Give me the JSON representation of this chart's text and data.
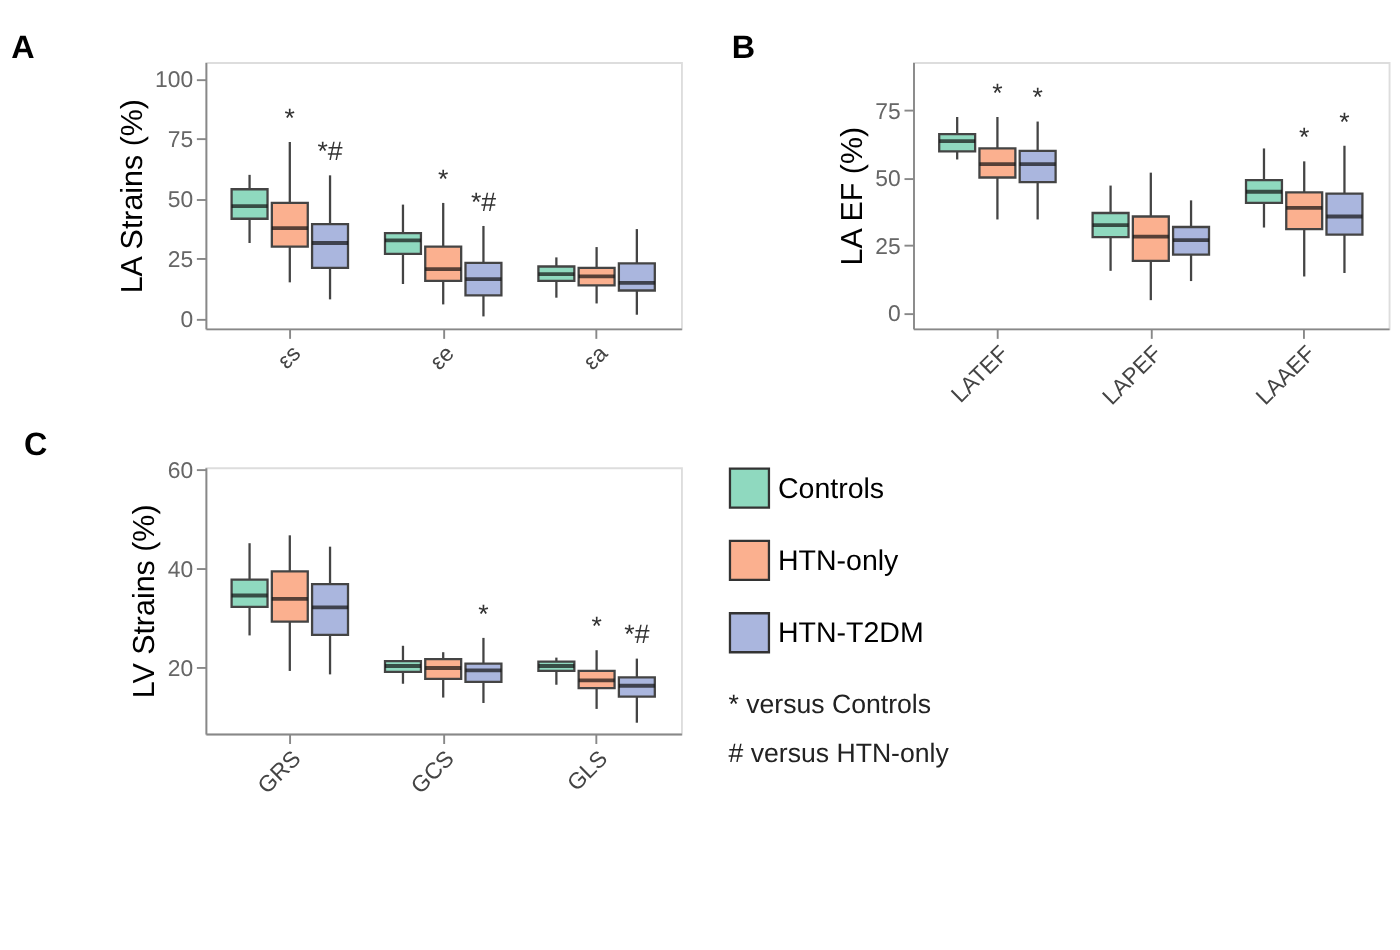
{
  "chart_data": [
    {
      "type": "box",
      "title": "A",
      "ylabel": "LA Strains (%)",
      "categories": [
        "εs",
        "εe",
        "εa"
      ],
      "ylim": [
        -4,
        107
      ],
      "yticks": [
        0,
        25,
        50,
        75,
        100
      ],
      "grid": false,
      "legend": false,
      "series": [
        {
          "color": "#8fd9bf",
          "boxes": [
            {
              "low": 31.6,
              "q1": 41.7,
              "median": 47,
              "q3": 54,
              "high": 60
            },
            {
              "low": 14.5,
              "q1": 27.1,
              "median": 32.7,
              "q3": 35.7,
              "high": 47.6
            },
            {
              "low": 8.8,
              "q1": 15.8,
              "median": 18.6,
              "q3": 21.8,
              "high": 25.6
            }
          ]
        },
        {
          "color": "#fbb08f",
          "boxes": [
            {
              "low": 15.2,
              "q1": 30.1,
              "median": 37.8,
              "q3": 48.3,
              "high": 73.7
            },
            {
              "low": 6,
              "q1": 15.8,
              "median": 20.7,
              "q3": 30.1,
              "high": 48.3
            },
            {
              "low": 6.4,
              "q1": 13.9,
              "median": 17.7,
              "q3": 21.2,
              "high": 29.9
            }
          ],
          "value_labels": [
            "*",
            "*",
            null
          ]
        },
        {
          "color": "#aab6de",
          "boxes": [
            {
              "low": 8.1,
              "q1": 21.2,
              "median": 31.6,
              "q3": 39.5,
              "high": 59.8
            },
            {
              "low": 1,
              "q1": 9.8,
              "median": 16.5,
              "q3": 23.3,
              "high": 38.7
            },
            {
              "low": 1.7,
              "q1": 11.8,
              "median": 15,
              "q3": 23.1,
              "high": 37.4
            }
          ],
          "value_labels": [
            "*#",
            "*#",
            null
          ]
        }
      ]
    },
    {
      "type": "box",
      "title": "B",
      "ylabel": "LA EF (%)",
      "categories": [
        "LATEF",
        "LAPEF",
        "LAAEF"
      ],
      "ylim": [
        -6,
        93
      ],
      "yticks": [
        0,
        25,
        50,
        75
      ],
      "grid": false,
      "legend": false,
      "series": [
        {
          "color": "#8fd9bf",
          "boxes": [
            {
              "low": 56.8,
              "q1": 59.8,
              "median": 63.6,
              "q3": 66.2,
              "high": 72.6
            },
            {
              "low": 15.4,
              "q1": 27.9,
              "median": 32.4,
              "q3": 36.9,
              "high": 47.1
            },
            {
              "low": 31.5,
              "q1": 40.7,
              "median": 44.8,
              "q3": 49.1,
              "high": 60.9
            }
          ]
        },
        {
          "color": "#fbb08f",
          "boxes": [
            {
              "low": 34.5,
              "q1": 50.1,
              "median": 55.1,
              "q3": 60.9,
              "high": 72.6
            },
            {
              "low": 4.5,
              "q1": 19.1,
              "median": 28.1,
              "q3": 35.6,
              "high": 51.9
            },
            {
              "low": 13.3,
              "q1": 30.9,
              "median": 38.8,
              "q3": 44.6,
              "high": 56.1
            }
          ],
          "value_labels": [
            "*",
            null,
            "*"
          ]
        },
        {
          "color": "#aab6de",
          "boxes": [
            {
              "low": 34.5,
              "q1": 48.4,
              "median": 55.1,
              "q3": 60,
              "high": 70.9
            },
            {
              "low": 11.6,
              "q1": 21.4,
              "median": 26.8,
              "q3": 31.7,
              "high": 41.6
            },
            {
              "low": 14.6,
              "q1": 28.9,
              "median": 35.6,
              "q3": 44.1,
              "high": 61.9
            }
          ],
          "value_labels": [
            "*",
            null,
            "*"
          ]
        }
      ]
    },
    {
      "type": "box",
      "title": "C",
      "ylabel": "LV Strains (%)",
      "categories": [
        "GRS",
        "GCS",
        "GLS"
      ],
      "ylim": [
        6.5,
        60.5
      ],
      "yticks": [
        20,
        40,
        60
      ],
      "grid": false,
      "legend": "right",
      "annotations": [
        "* versus Controls",
        "# versus HTN-only"
      ],
      "series": [
        {
          "name": "Controls",
          "color": "#8fd9bf",
          "boxes": [
            {
              "low": 26.4,
              "q1": 32.2,
              "median": 34.5,
              "q3": 37.7,
              "high": 45.1
            },
            {
              "low": 16.6,
              "q1": 19,
              "median": 20.2,
              "q3": 21.2,
              "high": 24.3
            },
            {
              "low": 16.4,
              "q1": 19.2,
              "median": 20.2,
              "q3": 21.1,
              "high": 21.9
            }
          ]
        },
        {
          "name": "HTN-only",
          "color": "#fbb08f",
          "boxes": [
            {
              "low": 19.2,
              "q1": 29.2,
              "median": 33.8,
              "q3": 39.4,
              "high": 46.7
            },
            {
              "low": 13.8,
              "q1": 17.6,
              "median": 19.8,
              "q3": 21.6,
              "high": 23
            },
            {
              "low": 11.5,
              "q1": 15.7,
              "median": 17.3,
              "q3": 19.2,
              "high": 23.4
            }
          ],
          "value_labels": [
            null,
            null,
            "*"
          ]
        },
        {
          "name": "HTN-T2DM",
          "color": "#aab6de",
          "boxes": [
            {
              "low": 18.5,
              "q1": 26.5,
              "median": 32.1,
              "q3": 36.8,
              "high": 44.4
            },
            {
              "low": 12.7,
              "q1": 17,
              "median": 19.3,
              "q3": 20.7,
              "high": 25.9
            },
            {
              "low": 8.7,
              "q1": 14,
              "median": 16.2,
              "q3": 17.9,
              "high": 21.7
            }
          ],
          "value_labels": [
            null,
            "*",
            "*#"
          ]
        }
      ]
    }
  ]
}
